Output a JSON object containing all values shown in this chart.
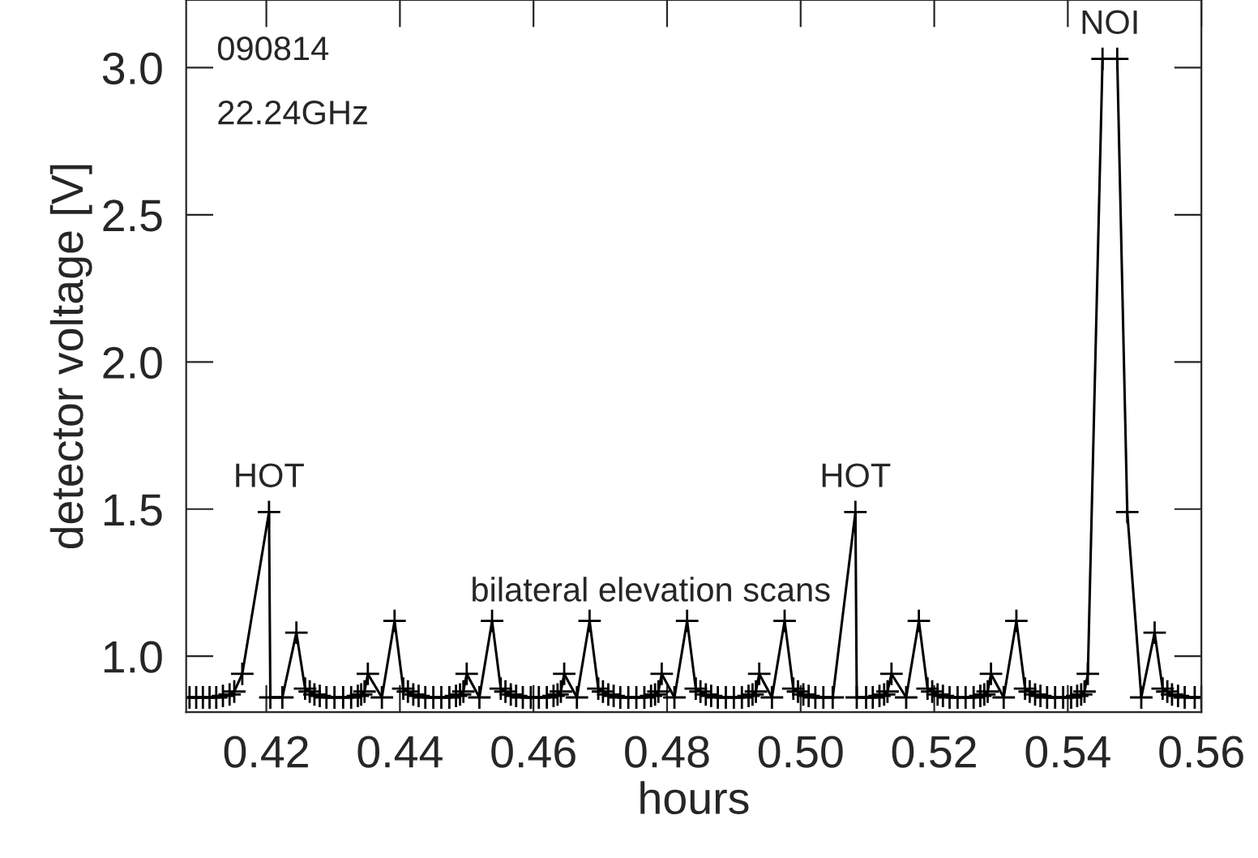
{
  "chart_data": {
    "type": "line",
    "xlabel": "hours",
    "ylabel": "detector voltage [V]",
    "xlim": [
      0.408,
      0.56
    ],
    "ylim": [
      0.81,
      3.23
    ],
    "xticks": [
      0.42,
      0.44,
      0.46,
      0.48,
      {
        "value": 0.5,
        "label": "0.50"
      },
      0.52,
      0.54,
      0.56
    ],
    "yticks": [
      {
        "value": 1.0,
        "label": "1.0"
      },
      1.5,
      {
        "value": 2.0,
        "label": "2.0"
      },
      2.5,
      {
        "value": 3.0,
        "label": "3.0"
      }
    ],
    "grid": false,
    "legend": false,
    "marker": "cross",
    "line_style": "solid",
    "annotations": [
      "090814",
      "22.24GHz",
      "bilateral elevation scans",
      {
        "text": "HOT",
        "x": 0.4204,
        "y": 1.49
      },
      {
        "text": "HOT",
        "x": 0.5082,
        "y": 1.49
      },
      {
        "text": "NOI",
        "x": 0.5463,
        "y": 3.03
      }
    ],
    "series": [
      {
        "color": "#000000",
        "x": [
          0.4085,
          0.4095,
          0.4105,
          0.4115,
          0.4125,
          0.4135,
          0.4145,
          0.4152,
          0.4164,
          0.4204,
          0.4206,
          0.4224,
          0.4245,
          0.4258,
          0.4265,
          0.4272,
          0.428,
          0.429,
          0.4302,
          0.4315,
          0.4327,
          0.4337,
          0.4342,
          0.4347,
          0.4352,
          0.4373,
          0.4392,
          0.4405,
          0.4412,
          0.442,
          0.4428,
          0.4438,
          0.445,
          0.4462,
          0.4474,
          0.4484,
          0.449,
          0.4495,
          0.45,
          0.4519,
          0.4538,
          0.4551,
          0.4558,
          0.4566,
          0.4574,
          0.4584,
          0.4596,
          0.4608,
          0.462,
          0.463,
          0.4636,
          0.4641,
          0.4646,
          0.4665,
          0.4684,
          0.4697,
          0.4704,
          0.4712,
          0.472,
          0.473,
          0.4742,
          0.4754,
          0.4766,
          0.4776,
          0.4782,
          0.4787,
          0.4792,
          0.4811,
          0.483,
          0.4843,
          0.485,
          0.4858,
          0.4866,
          0.4876,
          0.4888,
          0.49,
          0.4912,
          0.4922,
          0.4928,
          0.4933,
          0.4938,
          0.4957,
          0.4976,
          0.4989,
          0.4996,
          0.5004,
          0.5012,
          0.5022,
          0.5034,
          0.5048,
          0.5082,
          0.5084,
          0.5098,
          0.5108,
          0.5118,
          0.5125,
          0.513,
          0.5136,
          0.5158,
          0.5177,
          0.519,
          0.5197,
          0.5205,
          0.5213,
          0.5223,
          0.5235,
          0.5247,
          0.5259,
          0.5269,
          0.5275,
          0.528,
          0.5285,
          0.5304,
          0.5323,
          0.5336,
          0.5343,
          0.5351,
          0.5359,
          0.5369,
          0.5381,
          0.5393,
          0.5405,
          0.5414,
          0.542,
          0.5425,
          0.543,
          0.5452,
          0.5474,
          0.5489,
          0.551,
          0.553,
          0.5542,
          0.5549,
          0.5556,
          0.5565,
          0.5575,
          0.559,
          0.56
        ],
        "values": [
          0.86,
          0.86,
          0.86,
          0.86,
          0.86,
          0.865,
          0.87,
          0.88,
          0.94,
          1.49,
          0.86,
          0.86,
          1.08,
          0.89,
          0.88,
          0.87,
          0.865,
          0.86,
          0.86,
          0.86,
          0.86,
          0.865,
          0.87,
          0.88,
          0.94,
          0.86,
          1.12,
          0.89,
          0.88,
          0.87,
          0.865,
          0.86,
          0.86,
          0.86,
          0.86,
          0.865,
          0.87,
          0.88,
          0.94,
          0.86,
          1.12,
          0.89,
          0.88,
          0.87,
          0.865,
          0.86,
          0.86,
          0.86,
          0.86,
          0.865,
          0.87,
          0.88,
          0.94,
          0.86,
          1.12,
          0.89,
          0.88,
          0.87,
          0.865,
          0.86,
          0.86,
          0.86,
          0.86,
          0.865,
          0.87,
          0.88,
          0.94,
          0.86,
          1.12,
          0.89,
          0.88,
          0.87,
          0.865,
          0.86,
          0.86,
          0.86,
          0.86,
          0.865,
          0.87,
          0.88,
          0.94,
          0.86,
          1.12,
          0.89,
          0.88,
          0.87,
          0.865,
          0.86,
          0.86,
          0.86,
          1.49,
          0.86,
          0.86,
          0.86,
          0.865,
          0.87,
          0.88,
          0.94,
          0.86,
          1.12,
          0.89,
          0.88,
          0.87,
          0.865,
          0.86,
          0.86,
          0.86,
          0.86,
          0.865,
          0.87,
          0.88,
          0.94,
          0.86,
          1.12,
          0.89,
          0.88,
          0.87,
          0.865,
          0.86,
          0.86,
          0.86,
          0.86,
          0.865,
          0.87,
          0.88,
          0.94,
          3.03,
          3.03,
          1.49,
          0.86,
          1.08,
          0.89,
          0.88,
          0.87,
          0.865,
          0.86,
          0.86,
          0.86
        ]
      }
    ]
  }
}
